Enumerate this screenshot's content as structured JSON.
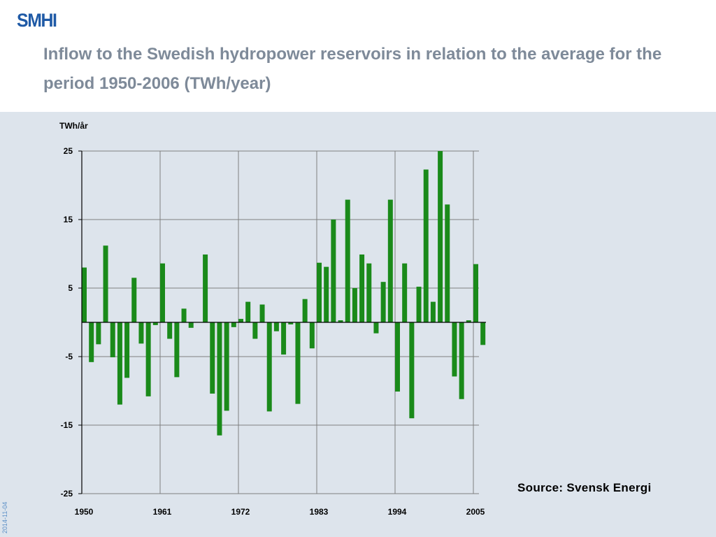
{
  "header": {
    "logo_text": "SMHI",
    "title": "Inflow to the Swedish hydropower reservoirs in relation to the average for the period 1950-2006 (TWh/year)"
  },
  "source_text": "Source: Svensk Energi",
  "side_date": "2014-11-04",
  "colors": {
    "bar": "#1a8a1a",
    "background": "#dde4ec",
    "title": "#7e8a99",
    "logo": "#1f5aa6",
    "grid": "#7f7f7f"
  },
  "chart_data": {
    "type": "bar",
    "ylabel": "TWh/år",
    "ylim": [
      -25,
      25
    ],
    "yticks": [
      25,
      15,
      5,
      -5,
      -15,
      -25
    ],
    "xtick_labels": [
      "1950",
      "1961",
      "1972",
      "1983",
      "1994",
      "2005"
    ],
    "grid": true,
    "x": [
      1950,
      1951,
      1952,
      1953,
      1954,
      1955,
      1956,
      1957,
      1958,
      1959,
      1960,
      1961,
      1962,
      1963,
      1964,
      1965,
      1966,
      1967,
      1968,
      1969,
      1970,
      1971,
      1972,
      1973,
      1974,
      1975,
      1976,
      1977,
      1978,
      1979,
      1980,
      1981,
      1982,
      1983,
      1984,
      1985,
      1986,
      1987,
      1988,
      1989,
      1990,
      1991,
      1992,
      1993,
      1994,
      1995,
      1996,
      1997,
      1998,
      1999,
      2000,
      2001,
      2002,
      2003,
      2004,
      2005,
      2006
    ],
    "values": [
      8,
      -5.8,
      -3.2,
      11.2,
      -5.1,
      -12,
      -8.1,
      6.5,
      -3.1,
      -10.8,
      -0.4,
      8.6,
      -2.4,
      -8,
      2,
      -0.8,
      0,
      9.9,
      -10.4,
      -16.5,
      -12.9,
      -0.7,
      0.5,
      3,
      -2.4,
      2.6,
      -13,
      -1.3,
      -4.7,
      -0.3,
      -11.9,
      3.4,
      -3.8,
      8.7,
      8.1,
      15,
      0.3,
      17.9,
      5,
      9.9,
      8.6,
      -1.6,
      5.9,
      17.9,
      -10.1,
      8.6,
      -14,
      5.2,
      22.3,
      3,
      25,
      17.2,
      -7.9,
      -11.2,
      0.3,
      8.5,
      -3.3
    ]
  }
}
